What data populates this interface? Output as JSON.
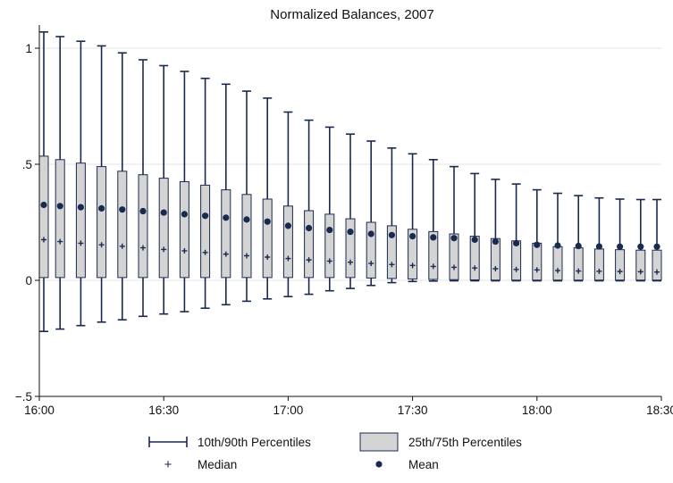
{
  "chart_data": {
    "type": "box",
    "title": "Normalized Balances, 2007",
    "xlabel": "",
    "ylabel": "",
    "x_tick_labels": [
      "16:00",
      "16:30",
      "17:00",
      "17:30",
      "18:00",
      "18:30"
    ],
    "y_tick_labels": [
      "−.5",
      "0",
      ".5",
      "1"
    ],
    "y_ticks": [
      -0.5,
      0,
      0.5,
      1
    ],
    "ylim": [
      -0.5,
      1.1
    ],
    "grid": true,
    "legend": {
      "position": "bottom",
      "whisker_label": "10th/90th Percentiles",
      "box_label": "25th/75th Percentiles",
      "median_label": "Median",
      "mean_label": "Mean"
    },
    "colors": {
      "box_fill": "#d4d4d4",
      "mark": "#1a2a4f",
      "grid": "#e4e4e4"
    },
    "times": [
      "16:00",
      "16:05",
      "16:10",
      "16:15",
      "16:20",
      "16:25",
      "16:30",
      "16:35",
      "16:40",
      "16:45",
      "16:50",
      "16:55",
      "17:00",
      "17:05",
      "17:10",
      "17:15",
      "17:20",
      "17:25",
      "17:30",
      "17:35",
      "17:40",
      "17:45",
      "17:50",
      "17:55",
      "18:00",
      "18:05",
      "18:10",
      "18:15",
      "18:20",
      "18:25",
      "18:30"
    ],
    "p10": [
      -0.22,
      -0.21,
      -0.195,
      -0.18,
      -0.17,
      -0.155,
      -0.145,
      -0.135,
      -0.12,
      -0.105,
      -0.09,
      -0.08,
      -0.07,
      -0.06,
      -0.045,
      -0.035,
      -0.022,
      -0.01,
      -0.005,
      -0.003,
      -0.002,
      -0.002,
      -0.002,
      -0.002,
      -0.002,
      -0.002,
      -0.002,
      -0.002,
      -0.002,
      -0.002,
      -0.002
    ],
    "p25": [
      0.012,
      0.012,
      0.012,
      0.012,
      0.012,
      0.012,
      0.012,
      0.012,
      0.012,
      0.012,
      0.012,
      0.012,
      0.012,
      0.012,
      0.012,
      0.012,
      0.01,
      0.008,
      0.006,
      0.004,
      0.003,
      0.002,
      0.001,
      0.001,
      0.001,
      0.001,
      0.001,
      0.001,
      0.001,
      0.001,
      0.001
    ],
    "median": [
      0.175,
      0.167,
      0.16,
      0.153,
      0.147,
      0.14,
      0.133,
      0.127,
      0.12,
      0.113,
      0.106,
      0.1,
      0.094,
      0.088,
      0.083,
      0.078,
      0.073,
      0.068,
      0.064,
      0.06,
      0.056,
      0.053,
      0.05,
      0.047,
      0.045,
      0.042,
      0.04,
      0.039,
      0.038,
      0.037,
      0.036
    ],
    "mean": [
      0.325,
      0.32,
      0.315,
      0.31,
      0.305,
      0.298,
      0.292,
      0.285,
      0.278,
      0.27,
      0.262,
      0.253,
      0.235,
      0.225,
      0.217,
      0.209,
      0.2,
      0.195,
      0.19,
      0.185,
      0.182,
      0.175,
      0.167,
      0.16,
      0.153,
      0.15,
      0.148,
      0.146,
      0.145,
      0.145,
      0.145
    ],
    "p75": [
      0.535,
      0.52,
      0.505,
      0.49,
      0.47,
      0.455,
      0.44,
      0.425,
      0.41,
      0.39,
      0.37,
      0.35,
      0.32,
      0.3,
      0.285,
      0.265,
      0.25,
      0.235,
      0.22,
      0.21,
      0.2,
      0.19,
      0.18,
      0.17,
      0.16,
      0.145,
      0.14,
      0.135,
      0.132,
      0.13,
      0.13
    ],
    "p90": [
      1.07,
      1.05,
      1.03,
      1.01,
      0.98,
      0.95,
      0.925,
      0.9,
      0.87,
      0.845,
      0.815,
      0.785,
      0.725,
      0.69,
      0.66,
      0.63,
      0.6,
      0.57,
      0.545,
      0.52,
      0.49,
      0.46,
      0.435,
      0.415,
      0.39,
      0.375,
      0.365,
      0.355,
      0.35,
      0.348,
      0.348
    ]
  }
}
